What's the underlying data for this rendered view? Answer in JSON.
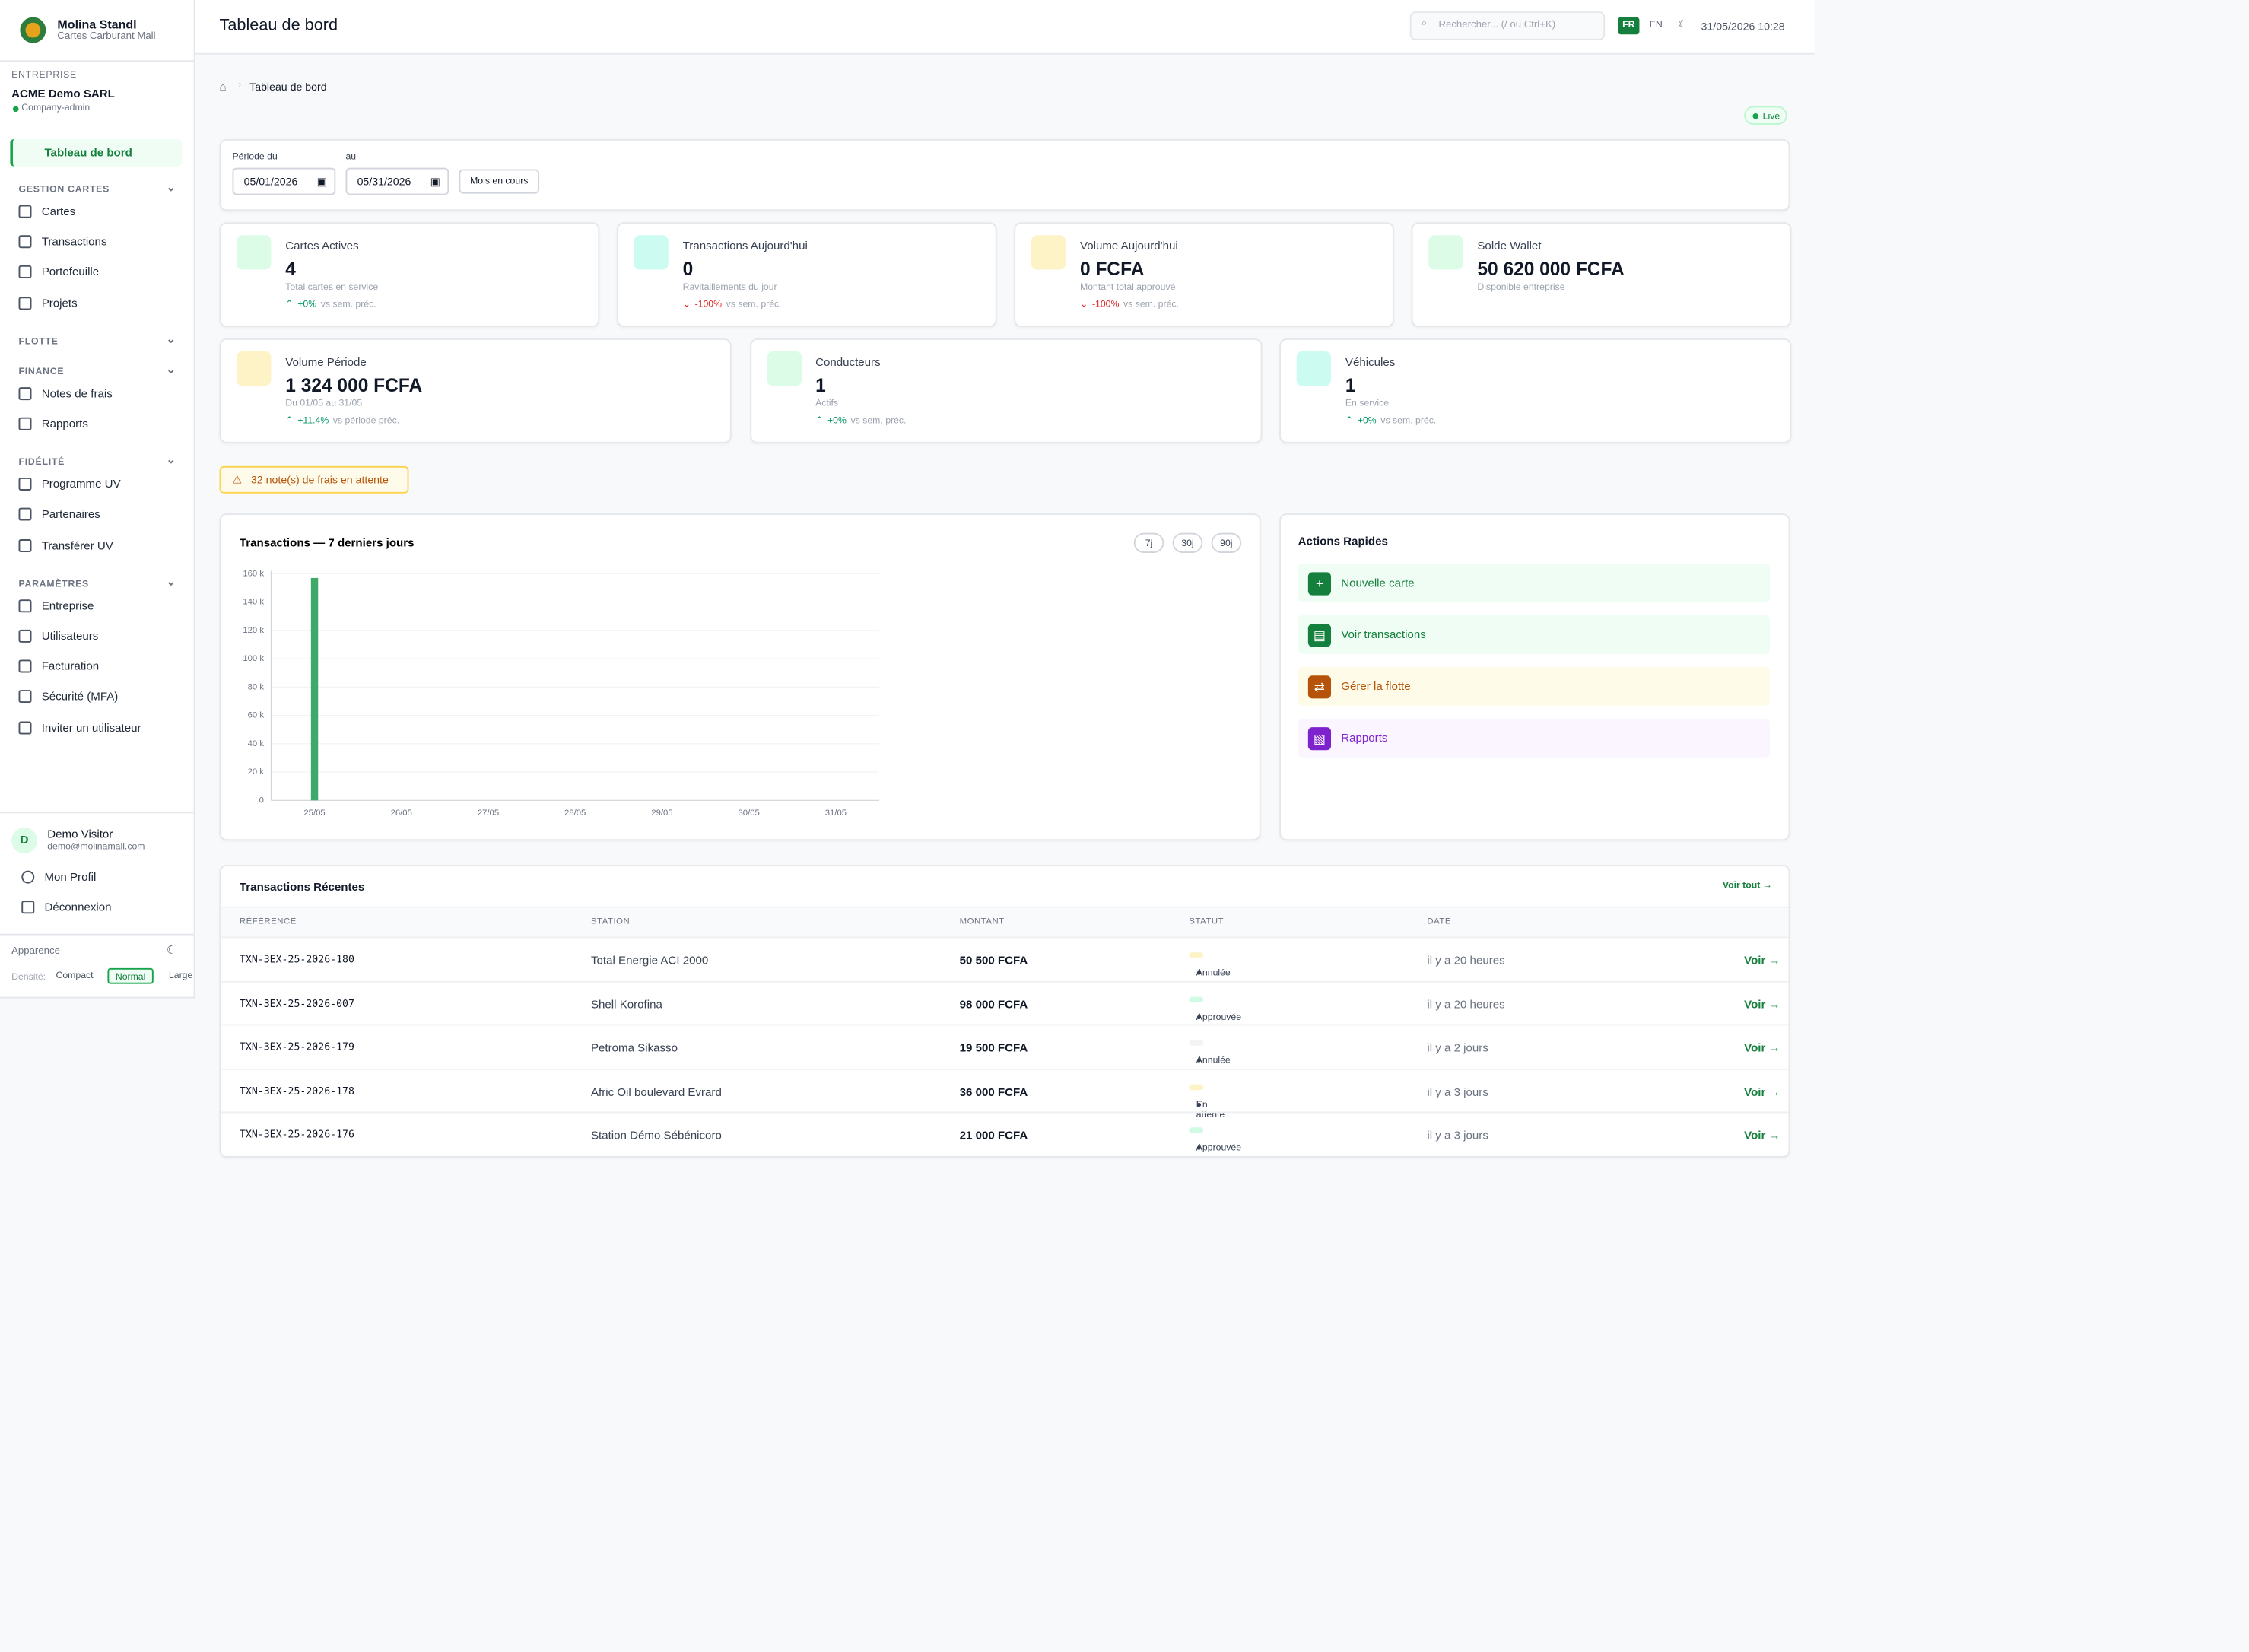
{
  "sidebar": {
    "brand": "Molina Standl",
    "brand_sub": "Cartes Carburant Mall",
    "company_label": "ENTREPRISE",
    "company": "ACME Demo SARL",
    "role": "Company-admin",
    "active": "Tableau de bord",
    "sections": [
      {
        "title": "GESTION CARTES",
        "items": [
          "Cartes",
          "Transactions",
          "Portefeuille",
          "Projets"
        ]
      },
      {
        "title": "FLOTTE",
        "items": []
      },
      {
        "title": "FINANCE",
        "items": [
          "Notes de frais",
          "Rapports"
        ]
      },
      {
        "title": "FIDÉLITÉ",
        "items": [
          "Programme UV",
          "Partenaires",
          "Transférer UV"
        ]
      },
      {
        "title": "PARAMÈTRES",
        "items": [
          "Entreprise",
          "Utilisateurs",
          "Facturation",
          "Sécurité (MFA)",
          "Inviter un utilisateur"
        ]
      }
    ],
    "user_initial": "D",
    "user": "Demo Visitor",
    "email": "demo@molinamall.com",
    "profile": "Mon Profil",
    "logout": "Déconnexion",
    "appearance": "Apparence",
    "density_label": "Densité:",
    "density": [
      "Compact",
      "Normal",
      "Large"
    ]
  },
  "header": {
    "title": "Tableau de bord",
    "search": "Rechercher... (/ ou Ctrl+K)",
    "lang_active": "FR",
    "lang_other": "EN",
    "datetime": "31/05/2026 10:28"
  },
  "breadcrumb": "Tableau de bord",
  "live": "Live",
  "filters": {
    "from_label": "Période du",
    "from": "05/01/2026",
    "to_label": "au",
    "to": "05/31/2026",
    "button": "Mois en cours"
  },
  "kpis": {
    "row1": [
      {
        "title": "Cartes Actives",
        "value": "4",
        "sub": "Total cartes en service",
        "change": "+0%",
        "compare": "vs sem. préc.",
        "color": "#dcfce7"
      },
      {
        "title": "Transactions Aujourd'hui",
        "value": "0",
        "sub": "Ravitaillements du jour",
        "change": "-100%",
        "compare": "vs sem. préc.",
        "color": "#ccfbf1"
      },
      {
        "title": "Volume Aujourd'hui",
        "value": "0 FCFA",
        "sub": "Montant total approuvé",
        "change": "-100%",
        "compare": "vs sem. préc.",
        "color": "#fef3c7"
      },
      {
        "title": "Solde Wallet",
        "value": "50 620 000 FCFA",
        "sub": "Disponible entreprise",
        "color": "#dcfce7"
      }
    ],
    "row2": [
      {
        "title": "Volume Période",
        "value": "1 324 000 FCFA",
        "sub": "Du 01/05 au 31/05",
        "change": "+11.4%",
        "compare": "vs période préc.",
        "color": "#fef3c7"
      },
      {
        "title": "Conducteurs",
        "value": "1",
        "sub": "Actifs",
        "change": "+0%",
        "compare": "vs sem. préc.",
        "color": "#dcfce7"
      },
      {
        "title": "Véhicules",
        "value": "1",
        "sub": "En service",
        "change": "+0%",
        "compare": "vs sem. préc.",
        "color": "#ccfbf1"
      }
    ]
  },
  "alert": "32 note(s) de frais en attente",
  "chart_data": {
    "type": "bar",
    "title": "Transactions — 7 derniers jours",
    "ranges": [
      "7j",
      "30j",
      "90j"
    ],
    "categories": [
      "25/05",
      "26/05",
      "27/05",
      "28/05",
      "29/05",
      "30/05",
      "31/05"
    ],
    "values": [
      157000,
      0,
      0,
      0,
      0,
      0,
      0
    ],
    "color": "#3fa86a",
    "ylim": [
      0,
      160000
    ],
    "yticks": [
      0,
      {
        "value": 20000,
        "label": "20 k"
      },
      {
        "value": 40000,
        "label": "40 k"
      },
      {
        "value": 60000,
        "label": "60 k"
      },
      {
        "value": 80000,
        "label": "80 k"
      },
      {
        "value": 100000,
        "label": "100 k"
      },
      {
        "value": 120000,
        "label": "120 k"
      },
      {
        "value": 140000,
        "label": "140 k"
      },
      {
        "value": 160000,
        "label": "160 k"
      }
    ],
    "grid": true
  },
  "quick_actions": {
    "title": "Actions Rapides",
    "items": [
      {
        "label": "Nouvelle carte",
        "color": "#15803d",
        "bg": "#f0fdf4"
      },
      {
        "label": "Voir transactions",
        "color": "#15803d",
        "bg": "#f0fdf4"
      },
      {
        "label": "Gérer la flotte",
        "color": "#b45309",
        "bg": "#fefce8"
      },
      {
        "label": "Rapports",
        "color": "#7e22ce",
        "bg": "#faf5ff"
      }
    ]
  },
  "recent_transactions": {
    "title": "Transactions Récentes",
    "see_all": "Voir tout →",
    "columns": [
      "RÉFÉRENCE",
      "STATION",
      "MONTANT",
      "STATUT",
      "DATE"
    ],
    "rows": [
      {
        "ref": "TXN-3EX-25-2026-180",
        "station": "Total Energie ACI 2000",
        "amount": "50 500 FCFA",
        "status": "Annulée",
        "status_color": "#fef3c7",
        "date": "il y a 20 heures",
        "action": "Voir →"
      },
      {
        "ref": "TXN-3EX-25-2026-007",
        "station": "Shell Korofina",
        "amount": "98 000 FCFA",
        "status": "Approuvée",
        "status_color": "#d1fae5",
        "date": "il y a 20 heures",
        "action": "Voir →"
      },
      {
        "ref": "TXN-3EX-25-2026-179",
        "station": "Petroma Sikasso",
        "amount": "19 500 FCFA",
        "status": "Annulée",
        "status_color": "#f3f4f6",
        "date": "il y a 2 jours",
        "action": "Voir →"
      },
      {
        "ref": "TXN-3EX-25-2026-178",
        "station": "Afric Oil boulevard Evrard",
        "amount": "36 000 FCFA",
        "status": "En attente",
        "status_color": "#fef3c7",
        "date": "il y a 3 jours",
        "action": "Voir →"
      },
      {
        "ref": "TXN-3EX-25-2026-176",
        "station": "Station Démo Sébénicoro",
        "amount": "21 000 FCFA",
        "status": "Approuvée",
        "status_color": "#d1fae5",
        "date": "il y a 3 jours",
        "action": "Voir →"
      }
    ]
  }
}
